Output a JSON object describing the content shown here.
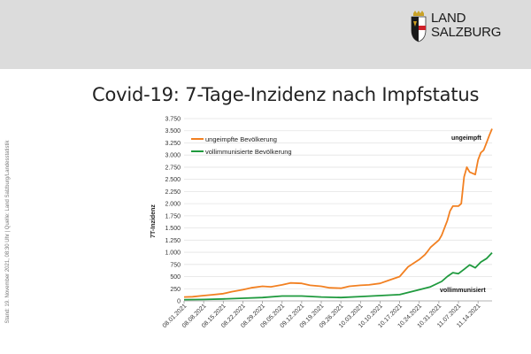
{
  "header": {
    "logo_line1": "LAND",
    "logo_line2": "SALZBURG",
    "brand_color": "#d0202a"
  },
  "title": "Covid-19: 7-Tage-Inzidenz nach Impfstatus",
  "source_note": "Stand: 19. November 2021, 08:30 Uhr  |  Quelle: Land Salzburg/Landesstatistik",
  "chart_data": {
    "type": "line",
    "title": "Covid-19: 7-Tage-Inzidenz nach Impfstatus",
    "xlabel": "",
    "ylabel": "7T-Inzidenz",
    "ylim": [
      0,
      3750
    ],
    "yticks": [
      0,
      250,
      500,
      750,
      1000,
      1250,
      1500,
      1750,
      2000,
      2250,
      2500,
      2750,
      3000,
      3250,
      3500,
      3750
    ],
    "ytick_labels": [
      "0",
      "250",
      "500",
      "750",
      "1.000",
      "1.250",
      "1.500",
      "1.750",
      "2.000",
      "2.250",
      "2.500",
      "2.750",
      "3.000",
      "3.250",
      "3.500",
      "3.750"
    ],
    "x_tick_labels": [
      "08.01.2021",
      "08.08.2021",
      "08.15.2021",
      "08.22.2021",
      "08.29.2021",
      "09.05.2021",
      "09.12.2021",
      "09.19.2021",
      "09.26.2021",
      "10.03.2021",
      "10.10.2021",
      "10.17.2021",
      "10.24.2021",
      "10.31.2021",
      "11.07.2021",
      "11.14.2021"
    ],
    "legend_position": "top-left",
    "grid": true,
    "annotations": [
      "ungeimpft",
      "vollimmunisiert"
    ],
    "series": [
      {
        "name": "ungeimpfte Bevölkerung",
        "color": "#f28021",
        "x": [
          0,
          3,
          7,
          10,
          14,
          17,
          21,
          24,
          28,
          31,
          35,
          38,
          42,
          45,
          49,
          52,
          56,
          59,
          63,
          66,
          70,
          73,
          77,
          80,
          84,
          86,
          87,
          88,
          90,
          91,
          92,
          94,
          95,
          96,
          98,
          99,
          100,
          101,
          102,
          104,
          105,
          106,
          107,
          108,
          109,
          110
        ],
        "values": [
          80,
          85,
          110,
          125,
          150,
          190,
          230,
          270,
          300,
          290,
          330,
          370,
          360,
          320,
          300,
          270,
          260,
          300,
          320,
          330,
          360,
          420,
          500,
          700,
          850,
          950,
          1020,
          1100,
          1200,
          1250,
          1350,
          1650,
          1850,
          1950,
          1950,
          2000,
          2550,
          2750,
          2650,
          2600,
          2900,
          3050,
          3100,
          3250,
          3400,
          3540
        ]
      },
      {
        "name": "vollimmunisierte Bevölkerung",
        "color": "#1f9a3e",
        "x": [
          0,
          7,
          14,
          21,
          28,
          35,
          42,
          49,
          56,
          63,
          70,
          77,
          84,
          88,
          92,
          94,
          96,
          98,
          100,
          102,
          104,
          106,
          108,
          110
        ],
        "values": [
          25,
          30,
          40,
          55,
          70,
          100,
          100,
          80,
          70,
          90,
          110,
          130,
          230,
          290,
          400,
          500,
          580,
          560,
          650,
          740,
          680,
          800,
          870,
          990
        ]
      }
    ]
  }
}
